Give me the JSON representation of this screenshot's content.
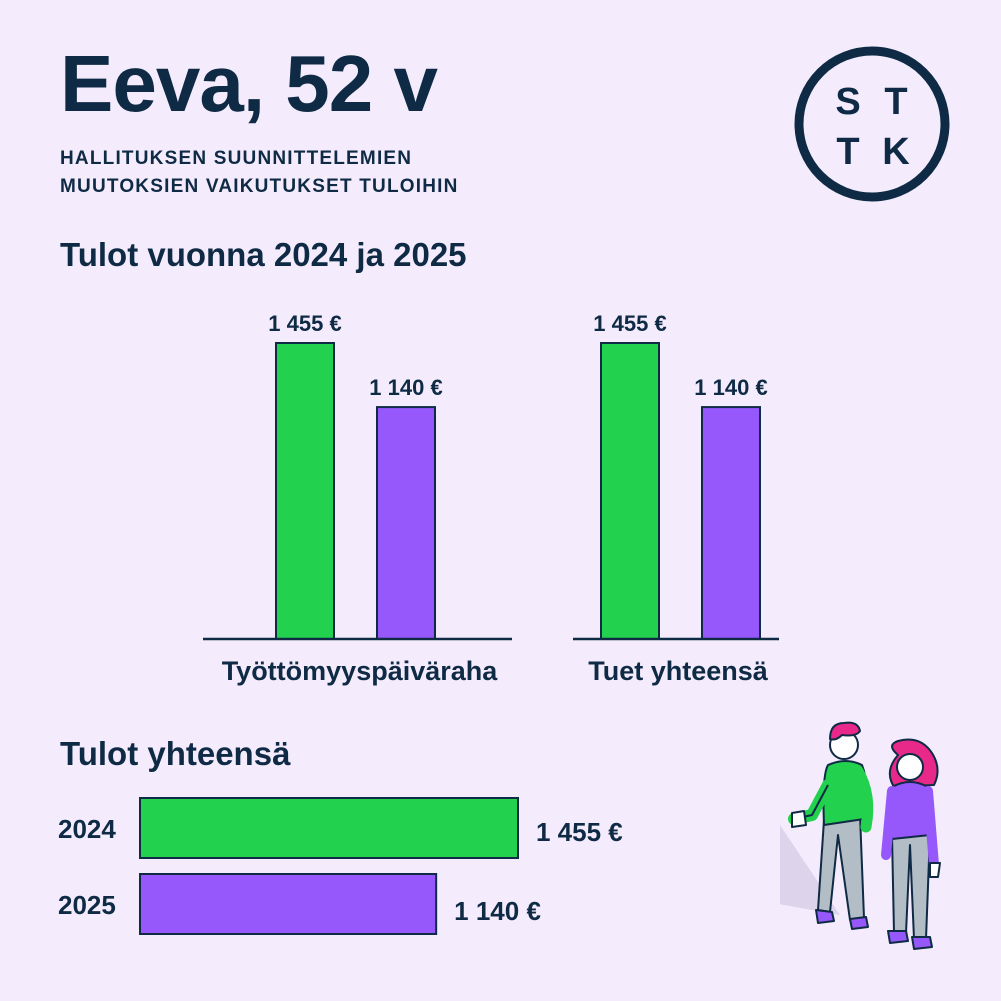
{
  "header": {
    "title": "Eeva, 52 v",
    "subtitle_lines": [
      "HALLITUKSEN SUUNNITTELEMIEN",
      "MUUTOKSIEN VAIKUTUKSET TULOIHIN"
    ]
  },
  "logo": {
    "letters": [
      "S",
      "T",
      "T",
      "K"
    ]
  },
  "colors": {
    "background": "#f4ecfc",
    "text": "#0f2a44",
    "year_2024": "#22d14e",
    "year_2025": "#9657fb",
    "figure_hair": "#e8298a"
  },
  "sections": {
    "income_by_benefit": "Tulot vuonna 2024 ja 2025",
    "income_total": "Tulot yhteensä"
  },
  "chart_data": [
    {
      "type": "bar",
      "title": "Tulot vuonna 2024 ja 2025",
      "categories": [
        "Työttömyyspäiväraha",
        "Tuet yhteensä"
      ],
      "series": [
        {
          "values": [
            1455,
            1455
          ],
          "labels": [
            "1 455 €",
            "1 455 €"
          ]
        },
        {
          "values": [
            1140,
            1140
          ],
          "labels": [
            "1 140 €",
            "1 140 €"
          ]
        }
      ],
      "unit": "€",
      "ylim": [
        0,
        1455
      ],
      "grid": false
    },
    {
      "type": "bar",
      "orientation": "horizontal",
      "title": "Tulot yhteensä",
      "categories": [
        "2024",
        "2025"
      ],
      "values": [
        1455,
        1140
      ],
      "labels": [
        "1 455 €",
        "1 140 €"
      ],
      "unit": "€",
      "xlim": [
        0,
        1455
      ],
      "grid": false
    }
  ],
  "illustration": {
    "icon": "two-people-pointing-illustration"
  }
}
